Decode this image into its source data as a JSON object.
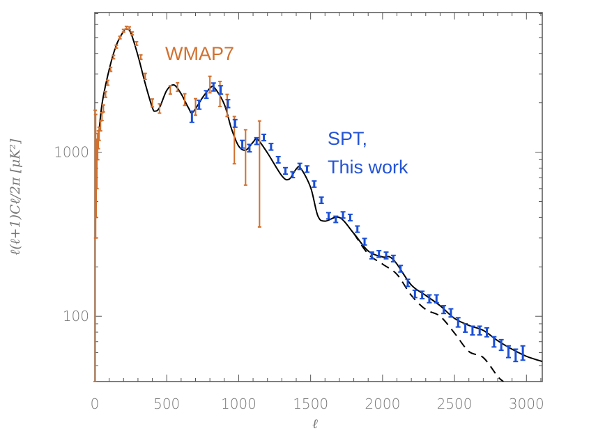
{
  "chart_data": {
    "type": "scatter",
    "title": "",
    "xlabel": "ℓ",
    "ylabel": "ℓ(ℓ+1)Cℓ/2π  [μK²]",
    "xlim": [
      0,
      3110
    ],
    "ylim": [
      40,
      7100
    ],
    "yscale": "log",
    "grid": false,
    "x_ticks": [
      "0",
      "500",
      "1000",
      "1500",
      "2000",
      "2500",
      "3000"
    ],
    "x_tick_values": [
      0,
      500,
      1000,
      1500,
      2000,
      2500,
      3000
    ],
    "y_ticks": [
      "100",
      "1000"
    ],
    "y_tick_values": [
      100,
      1000
    ],
    "annotations": [
      {
        "text": "WMAP7",
        "color": "#d2712f"
      },
      {
        "text": "SPT,",
        "color": "#2454d6"
      },
      {
        "text": "This work",
        "color": "#2454d6"
      }
    ],
    "series": [
      {
        "name": "WMAP7",
        "style": "errorbar",
        "color": "#d2712f",
        "x": [
          3,
          6,
          10,
          15,
          20,
          25,
          30,
          40,
          50,
          60,
          75,
          90,
          110,
          130,
          150,
          175,
          200,
          220,
          240,
          260,
          290,
          320,
          350,
          400,
          450,
          525,
          575,
          625,
          700,
          800,
          870,
          920,
          970,
          1048,
          1145
        ],
        "y": [
          900,
          1000,
          800,
          900,
          1100,
          1200,
          1300,
          1450,
          1650,
          1850,
          2250,
          2650,
          3200,
          3800,
          4400,
          5000,
          5500,
          5750,
          5700,
          5300,
          4600,
          3800,
          2900,
          2000,
          1850,
          2400,
          2500,
          2100,
          1900,
          2600,
          2300,
          1950,
          1250,
          1000,
          950
        ],
        "err": [
          900,
          700,
          400,
          300,
          200,
          150,
          120,
          100,
          90,
          90,
          90,
          90,
          90,
          90,
          90,
          90,
          100,
          100,
          110,
          110,
          110,
          120,
          120,
          110,
          120,
          140,
          150,
          170,
          220,
          300,
          400,
          300,
          400,
          370,
          600
        ]
      },
      {
        "name": "SPT, This work",
        "style": "errorbar",
        "color": "#1a4fd6",
        "x": [
          675,
          725,
          775,
          825,
          875,
          925,
          975,
          1025,
          1075,
          1125,
          1175,
          1225,
          1275,
          1325,
          1375,
          1425,
          1475,
          1525,
          1575,
          1625,
          1675,
          1725,
          1775,
          1825,
          1875,
          1925,
          1975,
          2025,
          2075,
          2125,
          2175,
          2225,
          2275,
          2325,
          2375,
          2425,
          2475,
          2525,
          2575,
          2625,
          2675,
          2725,
          2775,
          2825,
          2875,
          2925,
          2975
        ],
        "y": [
          1650,
          1950,
          2250,
          2500,
          2400,
          1980,
          1500,
          1120,
          1060,
          1170,
          1230,
          1080,
          900,
          770,
          730,
          820,
          790,
          640,
          510,
          410,
          390,
          415,
          400,
          340,
          285,
          235,
          240,
          235,
          225,
          195,
          160,
          137,
          135,
          128,
          128,
          110,
          105,
          92,
          85,
          82,
          82,
          80,
          70,
          67,
          61,
          58,
          60
        ],
        "err": [
          130,
          120,
          120,
          140,
          140,
          110,
          80,
          60,
          55,
          55,
          55,
          50,
          40,
          35,
          30,
          35,
          35,
          28,
          22,
          18,
          17,
          18,
          18,
          15,
          13,
          11,
          11,
          11,
          10,
          9,
          8,
          7,
          7,
          7,
          7,
          6,
          6,
          6,
          5,
          5,
          5,
          5,
          5,
          5,
          5,
          5,
          6
        ]
      },
      {
        "name": "",
        "style": "solid-line",
        "color": "#000000",
        "x": [
          2,
          20,
          50,
          100,
          150,
          200,
          220,
          250,
          300,
          350,
          400,
          420,
          450,
          500,
          550,
          600,
          650,
          680,
          750,
          800,
          830,
          900,
          950,
          1000,
          1050,
          1100,
          1130,
          1200,
          1300,
          1350,
          1400,
          1430,
          1500,
          1550,
          1600,
          1700,
          1800,
          1900,
          2000,
          2050,
          2100,
          2200,
          2300,
          2400,
          2500,
          2600,
          2700,
          2800,
          2900,
          3000,
          3110
        ],
        "y": [
          840,
          1100,
          1960,
          3190,
          4500,
          5460,
          5630,
          5350,
          3880,
          2630,
          1870,
          1780,
          1870,
          2380,
          2570,
          2270,
          1870,
          1750,
          2160,
          2450,
          2480,
          1960,
          1390,
          1090,
          1030,
          1150,
          1200,
          990,
          718,
          684,
          790,
          800,
          610,
          410,
          380,
          400,
          320,
          250,
          230,
          230,
          208,
          155,
          134,
          116,
          97,
          88,
          82,
          71,
          63,
          57,
          53
        ]
      },
      {
        "name": "",
        "style": "dashed-line",
        "color": "#000000",
        "x": [
          1800,
          1900,
          2000,
          2100,
          2200,
          2300,
          2400,
          2500,
          2600,
          2700,
          2800,
          2840
        ],
        "y": [
          320,
          240,
          208,
          180,
          134,
          110,
          100,
          79,
          61,
          56,
          43,
          40
        ]
      }
    ]
  }
}
